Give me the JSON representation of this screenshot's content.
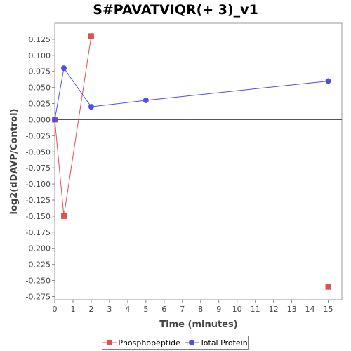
{
  "chart_data": {
    "type": "line",
    "title": "S#PAVATVIQR(+ 3)_v1",
    "xlabel": "Time (minutes)",
    "ylabel": "log2(dDAVP/Control)",
    "xlim": [
      0,
      15.75
    ],
    "ylim": [
      -0.28,
      0.15
    ],
    "x_ticks": [
      0,
      1,
      2,
      3,
      4,
      5,
      6,
      7,
      8,
      9,
      10,
      11,
      12,
      13,
      14,
      15
    ],
    "y_ticks": [
      0.125,
      0.1,
      0.075,
      0.05,
      0.025,
      0.0,
      -0.025,
      -0.05,
      -0.075,
      -0.1,
      -0.125,
      -0.15,
      -0.175,
      -0.2,
      -0.225,
      -0.25,
      -0.275
    ],
    "y_tick_labels": [
      "0.125",
      "0.100",
      "0.075",
      "0.050",
      "0.025",
      "0.000",
      "-0.025",
      "-0.050",
      "-0.075",
      "-0.100",
      "-0.125",
      "-0.150",
      "-0.175",
      "-0.200",
      "-0.225",
      "-0.250",
      "-0.275"
    ],
    "grid": false,
    "zero_line": true,
    "legend_position": "bottom",
    "series": [
      {
        "name": "Phosphopeptide",
        "color": "#e05050",
        "marker": "square",
        "line_points": [
          {
            "x": 0,
            "y": 0.0
          },
          {
            "x": 0.5,
            "y": -0.15
          },
          {
            "x": 2,
            "y": 0.13
          }
        ],
        "points": [
          {
            "x": 0,
            "y": 0.0
          },
          {
            "x": 0.5,
            "y": -0.15
          },
          {
            "x": 2,
            "y": 0.13
          },
          {
            "x": 15,
            "y": -0.26
          }
        ]
      },
      {
        "name": "Total Protein",
        "color": "#5050e0",
        "marker": "circle",
        "line_points": [
          {
            "x": 0,
            "y": 0.0
          },
          {
            "x": 0.5,
            "y": 0.08
          },
          {
            "x": 2,
            "y": 0.02
          },
          {
            "x": 5,
            "y": 0.03
          },
          {
            "x": 15,
            "y": 0.06
          }
        ],
        "points": [
          {
            "x": 0,
            "y": 0.0
          },
          {
            "x": 0.5,
            "y": 0.08
          },
          {
            "x": 2,
            "y": 0.02
          },
          {
            "x": 5,
            "y": 0.03
          },
          {
            "x": 15,
            "y": 0.06
          }
        ]
      }
    ]
  }
}
